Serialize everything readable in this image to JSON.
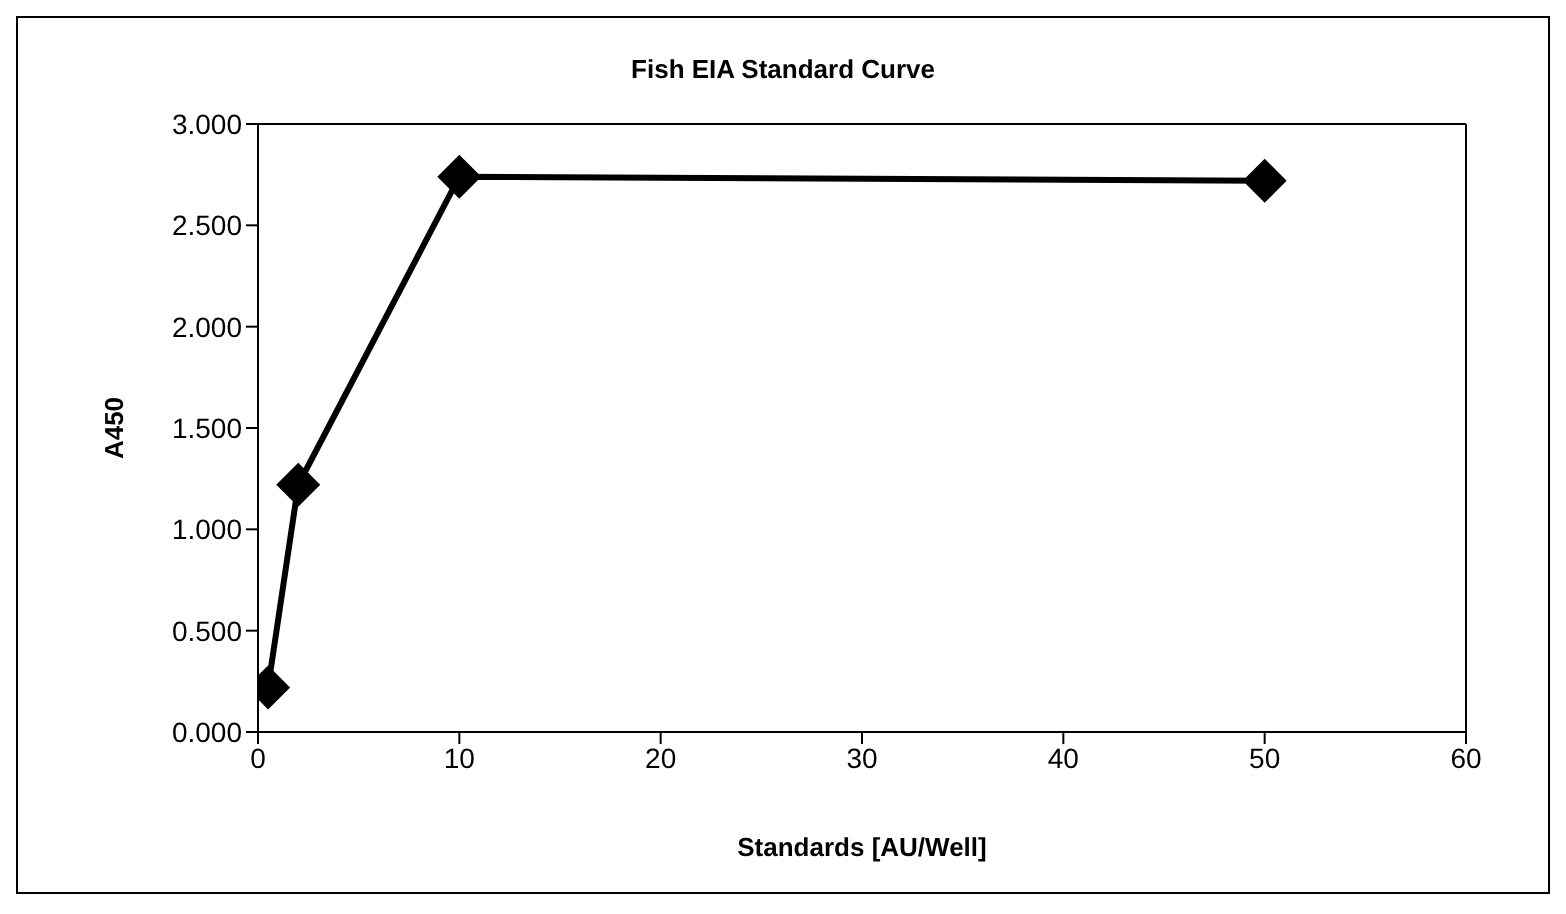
{
  "chart_data": {
    "type": "line",
    "title": "Fish EIA Standard Curve",
    "xlabel": "Standards [AU/Well]",
    "ylabel": "A450",
    "x": [
      0.5,
      2,
      10,
      50
    ],
    "series": [
      {
        "color": "#000000",
        "values": [
          0.22,
          1.22,
          2.74,
          2.72
        ]
      }
    ],
    "xlim": [
      0,
      60
    ],
    "xticks": [
      0,
      10,
      20,
      30,
      40,
      50,
      60
    ],
    "ylim": [
      0,
      3
    ],
    "yticks": [
      {
        "value": 0,
        "label": "0.000"
      },
      {
        "value": 0.5,
        "label": "0.500"
      },
      {
        "value": 1,
        "label": "1.000"
      },
      {
        "value": 1.5,
        "label": "1.500"
      },
      {
        "value": 2,
        "label": "2.000"
      },
      {
        "value": 2.5,
        "label": "2.500"
      },
      {
        "value": 3,
        "label": "3.000"
      }
    ],
    "marker": "diamond",
    "line_style": "solid",
    "grid": false,
    "legend": false
  }
}
